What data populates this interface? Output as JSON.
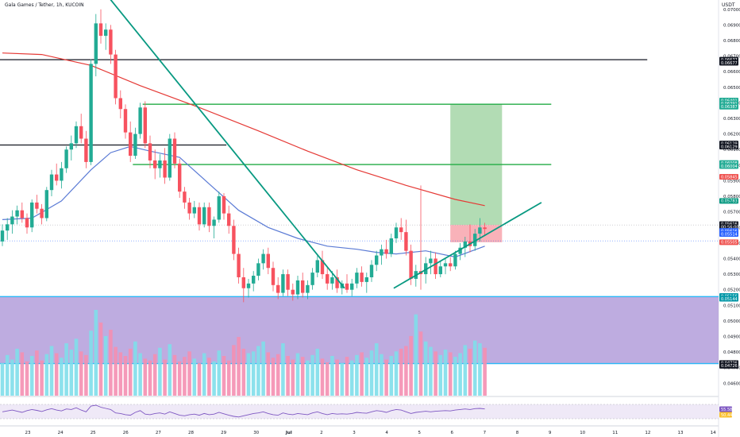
{
  "header": {
    "title": "Gala Games / Tether, 1h, KUCOIN",
    "currency": "USDT"
  },
  "colors": {
    "up": "#26a69a",
    "up_body": "#22ab94",
    "down": "#ef5350",
    "down_body": "#f7525f",
    "ma_long": "#e53935",
    "ma_short": "#5b7bd5",
    "trendline": "#089981",
    "level_green": "#22ab44",
    "level_black": "#131722",
    "zone_purple": "#b39ddb",
    "zone_border": "#29b6f6",
    "target_fill": "#a5d6a7",
    "stop_fill": "#f8a5ad",
    "rsi_line": "#7e57c2",
    "rsi_band": "#ede7f6"
  },
  "chart_data": {
    "type": "candlestick",
    "symbol": "Gala Games / Tether",
    "interval": "1h",
    "exchange": "KUCOIN",
    "quote": "USDT",
    "ylim": [
      0.0452,
      0.0706
    ],
    "y_ticks": [
      "0.07000",
      "0.06900",
      "0.06800",
      "0.06700",
      "0.06600",
      "0.06500",
      "0.06400",
      "0.06300",
      "0.06200",
      "0.06100",
      "0.06000",
      "0.05900",
      "0.05800",
      "0.05700",
      "0.05600",
      "0.05500",
      "0.05400",
      "0.05300",
      "0.05200",
      "0.05100",
      "0.05000",
      "0.04900",
      "0.04800",
      "0.04700",
      "0.04600"
    ],
    "x_ticks": [
      "23",
      "24",
      "25",
      "26",
      "27",
      "28",
      "29",
      "30",
      "Jul",
      "2",
      "3",
      "4",
      "5",
      "6",
      "7",
      "8",
      "9",
      "10",
      "11",
      "12",
      "13",
      "14"
    ],
    "x_range": [
      22.2,
      14.2
    ],
    "candles": [
      {
        "o": 0.0551,
        "h": 0.0562,
        "l": 0.0548,
        "c": 0.0558
      },
      {
        "o": 0.0558,
        "h": 0.0566,
        "l": 0.0552,
        "c": 0.0562
      },
      {
        "o": 0.0562,
        "h": 0.0571,
        "l": 0.0556,
        "c": 0.0567
      },
      {
        "o": 0.0567,
        "h": 0.0574,
        "l": 0.0562,
        "c": 0.0571
      },
      {
        "o": 0.0571,
        "h": 0.0576,
        "l": 0.0563,
        "c": 0.0566
      },
      {
        "o": 0.0566,
        "h": 0.0569,
        "l": 0.0556,
        "c": 0.056
      },
      {
        "o": 0.056,
        "h": 0.0578,
        "l": 0.0557,
        "c": 0.0576
      },
      {
        "o": 0.0576,
        "h": 0.0581,
        "l": 0.0569,
        "c": 0.0572
      },
      {
        "o": 0.0572,
        "h": 0.0575,
        "l": 0.0562,
        "c": 0.0566
      },
      {
        "o": 0.0566,
        "h": 0.0586,
        "l": 0.0564,
        "c": 0.0584
      },
      {
        "o": 0.0584,
        "h": 0.0597,
        "l": 0.058,
        "c": 0.0594
      },
      {
        "o": 0.0594,
        "h": 0.0601,
        "l": 0.0587,
        "c": 0.059
      },
      {
        "o": 0.059,
        "h": 0.0602,
        "l": 0.0585,
        "c": 0.0598
      },
      {
        "o": 0.0598,
        "h": 0.0612,
        "l": 0.0595,
        "c": 0.061
      },
      {
        "o": 0.061,
        "h": 0.0619,
        "l": 0.0603,
        "c": 0.0614
      },
      {
        "o": 0.0614,
        "h": 0.0628,
        "l": 0.0611,
        "c": 0.0625
      },
      {
        "o": 0.0625,
        "h": 0.0633,
        "l": 0.0614,
        "c": 0.0617
      },
      {
        "o": 0.0617,
        "h": 0.0622,
        "l": 0.0598,
        "c": 0.0602
      },
      {
        "o": 0.0602,
        "h": 0.0668,
        "l": 0.06,
        "c": 0.0665
      },
      {
        "o": 0.0665,
        "h": 0.0697,
        "l": 0.0657,
        "c": 0.0691
      },
      {
        "o": 0.0691,
        "h": 0.07,
        "l": 0.0678,
        "c": 0.0683
      },
      {
        "o": 0.0683,
        "h": 0.0691,
        "l": 0.0674,
        "c": 0.0687
      },
      {
        "o": 0.0687,
        "h": 0.069,
        "l": 0.0665,
        "c": 0.0671
      },
      {
        "o": 0.0671,
        "h": 0.0674,
        "l": 0.0639,
        "c": 0.0643
      },
      {
        "o": 0.0643,
        "h": 0.0648,
        "l": 0.063,
        "c": 0.0636
      },
      {
        "o": 0.0636,
        "h": 0.0639,
        "l": 0.0617,
        "c": 0.0621
      },
      {
        "o": 0.0621,
        "h": 0.0628,
        "l": 0.0602,
        "c": 0.0606
      },
      {
        "o": 0.0606,
        "h": 0.0624,
        "l": 0.0604,
        "c": 0.062
      },
      {
        "o": 0.062,
        "h": 0.064,
        "l": 0.0617,
        "c": 0.0637
      },
      {
        "o": 0.0637,
        "h": 0.0641,
        "l": 0.0611,
        "c": 0.0614
      },
      {
        "o": 0.0614,
        "h": 0.0619,
        "l": 0.0598,
        "c": 0.0603
      },
      {
        "o": 0.0603,
        "h": 0.061,
        "l": 0.0591,
        "c": 0.0598
      },
      {
        "o": 0.0598,
        "h": 0.0607,
        "l": 0.0592,
        "c": 0.0603
      },
      {
        "o": 0.0603,
        "h": 0.0611,
        "l": 0.0588,
        "c": 0.0592
      },
      {
        "o": 0.0592,
        "h": 0.062,
        "l": 0.059,
        "c": 0.0617
      },
      {
        "o": 0.0617,
        "h": 0.0621,
        "l": 0.0598,
        "c": 0.0601
      },
      {
        "o": 0.0601,
        "h": 0.0604,
        "l": 0.0579,
        "c": 0.0583
      },
      {
        "o": 0.0583,
        "h": 0.0586,
        "l": 0.0572,
        "c": 0.0576
      },
      {
        "o": 0.0576,
        "h": 0.0579,
        "l": 0.0565,
        "c": 0.0569
      },
      {
        "o": 0.0569,
        "h": 0.0577,
        "l": 0.0566,
        "c": 0.0573
      },
      {
        "o": 0.0573,
        "h": 0.0576,
        "l": 0.0558,
        "c": 0.0562
      },
      {
        "o": 0.0562,
        "h": 0.0576,
        "l": 0.056,
        "c": 0.0573
      },
      {
        "o": 0.0573,
        "h": 0.0576,
        "l": 0.0557,
        "c": 0.0561
      },
      {
        "o": 0.0561,
        "h": 0.0567,
        "l": 0.0553,
        "c": 0.0565
      },
      {
        "o": 0.0565,
        "h": 0.0583,
        "l": 0.0563,
        "c": 0.058
      },
      {
        "o": 0.058,
        "h": 0.0582,
        "l": 0.0565,
        "c": 0.0569
      },
      {
        "o": 0.0569,
        "h": 0.0574,
        "l": 0.0556,
        "c": 0.0561
      },
      {
        "o": 0.0561,
        "h": 0.0565,
        "l": 0.0539,
        "c": 0.0543
      },
      {
        "o": 0.0543,
        "h": 0.0547,
        "l": 0.0524,
        "c": 0.0528
      },
      {
        "o": 0.0528,
        "h": 0.0534,
        "l": 0.0512,
        "c": 0.0521
      },
      {
        "o": 0.0521,
        "h": 0.0527,
        "l": 0.0515,
        "c": 0.0524
      },
      {
        "o": 0.0524,
        "h": 0.0532,
        "l": 0.0519,
        "c": 0.0529
      },
      {
        "o": 0.0529,
        "h": 0.054,
        "l": 0.0526,
        "c": 0.0537
      },
      {
        "o": 0.0537,
        "h": 0.0546,
        "l": 0.0533,
        "c": 0.0543
      },
      {
        "o": 0.0543,
        "h": 0.0547,
        "l": 0.053,
        "c": 0.0534
      },
      {
        "o": 0.0534,
        "h": 0.0538,
        "l": 0.0519,
        "c": 0.0523
      },
      {
        "o": 0.0523,
        "h": 0.0528,
        "l": 0.0514,
        "c": 0.0518
      },
      {
        "o": 0.0518,
        "h": 0.0533,
        "l": 0.0516,
        "c": 0.053
      },
      {
        "o": 0.053,
        "h": 0.0533,
        "l": 0.0516,
        "c": 0.052
      },
      {
        "o": 0.052,
        "h": 0.0524,
        "l": 0.0513,
        "c": 0.0517
      },
      {
        "o": 0.0517,
        "h": 0.0529,
        "l": 0.0514,
        "c": 0.0526
      },
      {
        "o": 0.0526,
        "h": 0.0531,
        "l": 0.0515,
        "c": 0.0518
      },
      {
        "o": 0.0518,
        "h": 0.0526,
        "l": 0.0514,
        "c": 0.0523
      },
      {
        "o": 0.0523,
        "h": 0.0534,
        "l": 0.052,
        "c": 0.0531
      },
      {
        "o": 0.0531,
        "h": 0.0542,
        "l": 0.0528,
        "c": 0.0539
      },
      {
        "o": 0.0539,
        "h": 0.0545,
        "l": 0.0527,
        "c": 0.053
      },
      {
        "o": 0.053,
        "h": 0.0534,
        "l": 0.052,
        "c": 0.0524
      },
      {
        "o": 0.0524,
        "h": 0.0532,
        "l": 0.052,
        "c": 0.0528
      },
      {
        "o": 0.0528,
        "h": 0.0533,
        "l": 0.0518,
        "c": 0.0521
      },
      {
        "o": 0.0521,
        "h": 0.0526,
        "l": 0.0517,
        "c": 0.0524
      },
      {
        "o": 0.0524,
        "h": 0.053,
        "l": 0.0518,
        "c": 0.052
      },
      {
        "o": 0.052,
        "h": 0.0527,
        "l": 0.0516,
        "c": 0.0524
      },
      {
        "o": 0.0524,
        "h": 0.0534,
        "l": 0.0521,
        "c": 0.0531
      },
      {
        "o": 0.0531,
        "h": 0.0535,
        "l": 0.0522,
        "c": 0.0525
      },
      {
        "o": 0.0525,
        "h": 0.0531,
        "l": 0.0518,
        "c": 0.0528
      },
      {
        "o": 0.0528,
        "h": 0.0539,
        "l": 0.0525,
        "c": 0.0536
      },
      {
        "o": 0.0536,
        "h": 0.0545,
        "l": 0.0532,
        "c": 0.0542
      },
      {
        "o": 0.0542,
        "h": 0.0549,
        "l": 0.0536,
        "c": 0.0546
      },
      {
        "o": 0.0546,
        "h": 0.0552,
        "l": 0.054,
        "c": 0.0543
      },
      {
        "o": 0.0543,
        "h": 0.0556,
        "l": 0.0541,
        "c": 0.0553
      },
      {
        "o": 0.0553,
        "h": 0.0563,
        "l": 0.055,
        "c": 0.056
      },
      {
        "o": 0.056,
        "h": 0.0566,
        "l": 0.0552,
        "c": 0.0557
      },
      {
        "o": 0.0557,
        "h": 0.0565,
        "l": 0.0542,
        "c": 0.0545
      },
      {
        "o": 0.0545,
        "h": 0.0549,
        "l": 0.0523,
        "c": 0.0527
      },
      {
        "o": 0.0527,
        "h": 0.0536,
        "l": 0.0522,
        "c": 0.0532
      },
      {
        "o": 0.0532,
        "h": 0.0587,
        "l": 0.052,
        "c": 0.053
      },
      {
        "o": 0.053,
        "h": 0.0541,
        "l": 0.0524,
        "c": 0.0537
      },
      {
        "o": 0.0537,
        "h": 0.0545,
        "l": 0.053,
        "c": 0.054
      },
      {
        "o": 0.054,
        "h": 0.0544,
        "l": 0.0527,
        "c": 0.053
      },
      {
        "o": 0.053,
        "h": 0.0538,
        "l": 0.0528,
        "c": 0.0535
      },
      {
        "o": 0.0535,
        "h": 0.054,
        "l": 0.053,
        "c": 0.0537
      },
      {
        "o": 0.0537,
        "h": 0.0541,
        "l": 0.0532,
        "c": 0.0535
      },
      {
        "o": 0.0535,
        "h": 0.0545,
        "l": 0.0533,
        "c": 0.0543
      },
      {
        "o": 0.0543,
        "h": 0.055,
        "l": 0.0539,
        "c": 0.0547
      },
      {
        "o": 0.0547,
        "h": 0.0554,
        "l": 0.0541,
        "c": 0.0551
      },
      {
        "o": 0.0551,
        "h": 0.0562,
        "l": 0.0544,
        "c": 0.0548
      },
      {
        "o": 0.0548,
        "h": 0.0559,
        "l": 0.0545,
        "c": 0.0556
      },
      {
        "o": 0.0556,
        "h": 0.0566,
        "l": 0.0551,
        "c": 0.056
      },
      {
        "o": 0.056,
        "h": 0.0563,
        "l": 0.0555,
        "c": 0.0559
      }
    ],
    "volume": [
      36,
      45,
      40,
      52,
      48,
      38,
      44,
      50,
      39,
      46,
      55,
      47,
      42,
      58,
      51,
      63,
      49,
      45,
      72,
      95,
      81,
      66,
      73,
      54,
      48,
      44,
      52,
      60,
      47,
      41,
      39,
      46,
      53,
      40,
      57,
      45,
      38,
      43,
      49,
      41,
      36,
      47,
      42,
      38,
      50,
      44,
      39,
      56,
      65,
      52,
      47,
      49,
      55,
      60,
      48,
      42,
      46,
      58,
      44,
      40,
      47,
      43,
      39,
      45,
      52,
      41,
      37,
      44,
      40,
      36,
      43,
      39,
      45,
      48,
      42,
      50,
      58,
      46,
      40,
      44,
      49,
      52,
      55,
      66,
      90,
      71,
      60,
      54,
      49,
      45,
      51,
      48,
      43,
      47,
      56,
      52,
      61,
      58,
      53
    ],
    "ma_long": [
      [
        0,
        0.0672
      ],
      [
        8,
        0.0671
      ],
      [
        18,
        0.0664
      ],
      [
        28,
        0.0651
      ],
      [
        40,
        0.0637
      ],
      [
        52,
        0.0622
      ],
      [
        62,
        0.0609
      ],
      [
        72,
        0.0597
      ],
      [
        82,
        0.0587
      ],
      [
        92,
        0.0578
      ],
      [
        98,
        0.0574
      ]
    ],
    "ma_short": [
      [
        0,
        0.0565
      ],
      [
        6,
        0.0566
      ],
      [
        12,
        0.0577
      ],
      [
        18,
        0.0597
      ],
      [
        22,
        0.0608
      ],
      [
        26,
        0.0612
      ],
      [
        30,
        0.0609
      ],
      [
        36,
        0.0605
      ],
      [
        42,
        0.0588
      ],
      [
        48,
        0.0571
      ],
      [
        54,
        0.056
      ],
      [
        60,
        0.0553
      ],
      [
        66,
        0.0548
      ],
      [
        72,
        0.0546
      ],
      [
        76,
        0.0544
      ],
      [
        80,
        0.0543
      ],
      [
        86,
        0.0545
      ],
      [
        92,
        0.0541
      ],
      [
        98,
        0.0548
      ]
    ],
    "trendlines": [
      {
        "from": [
          20.5,
          0.0712
        ],
        "to": [
          69.5,
          0.0521
        ]
      },
      {
        "from": [
          79.5,
          0.0521
        ],
        "to": [
          109.5,
          0.0576
        ]
      }
    ],
    "levels": [
      {
        "price": 0.06677,
        "kind": "black",
        "x0": -1,
        "x1": 131
      },
      {
        "price": 0.06129,
        "kind": "black",
        "x0": -1,
        "x1": 45.5
      },
      {
        "price": 0.06391,
        "kind": "green",
        "x0": 28.5,
        "x1": 111.5
      },
      {
        "price": 0.06004,
        "kind": "green",
        "x0": 26.5,
        "x1": 111.5
      }
    ],
    "zone": {
      "top": 0.05156,
      "bottom": 0.04726
    },
    "position": {
      "entry": 0.05616,
      "target": 0.06391,
      "stop": 0.05505,
      "x0": 91,
      "x1": 101.5
    },
    "current_price_line": 0.05616,
    "ma_short_line": 0.05514,
    "axis_tags": [
      {
        "text": "0.06677",
        "price": 0.06677,
        "bg": "#131722"
      },
      {
        "text": "0.06677",
        "price": 0.06657,
        "bg": "#131722"
      },
      {
        "text": "0.06401",
        "price": 0.06415,
        "bg": "#22ab94"
      },
      {
        "text": "0.06391",
        "price": 0.06395,
        "bg": "#22ab94"
      },
      {
        "text": "0.06387",
        "price": 0.06375,
        "bg": "#22ab94"
      },
      {
        "text": "0.06129",
        "price": 0.06139,
        "bg": "#131722"
      },
      {
        "text": "0.06129",
        "price": 0.06119,
        "bg": "#131722"
      },
      {
        "text": "0.06008",
        "price": 0.06014,
        "bg": "#22ab94"
      },
      {
        "text": "0.06004",
        "price": 0.05994,
        "bg": "#22ab94"
      },
      {
        "text": "0.05845",
        "price": 0.05925,
        "bg": "#ef5350"
      },
      {
        "text": "0.05783",
        "price": 0.0577,
        "bg": "#089981"
      },
      {
        "text": "0.05616",
        "price": 0.05622,
        "bg": "#131722"
      },
      {
        "text": "00:56:00",
        "price": 0.05602,
        "bg": "#131722"
      },
      {
        "text": "0.05616",
        "price": 0.05578,
        "bg": "#2962ff"
      },
      {
        "text": "0.05514",
        "price": 0.05558,
        "bg": "#2962ff"
      },
      {
        "text": "0.05505",
        "price": 0.05505,
        "bg": "#ef5350"
      },
      {
        "text": "0.05156",
        "price": 0.0516,
        "bg": "#0097a7"
      },
      {
        "text": "0.05144",
        "price": 0.05142,
        "bg": "#0097a7"
      },
      {
        "text": "0.04726",
        "price": 0.0473,
        "bg": "#131722"
      },
      {
        "text": "0.04726",
        "price": 0.04712,
        "bg": "#131722"
      }
    ],
    "rsi": {
      "values": [
        52,
        55,
        58,
        54,
        50,
        56,
        60,
        57,
        53,
        59,
        63,
        58,
        55,
        62,
        60,
        66,
        58,
        52,
        72,
        75,
        68,
        64,
        60,
        48,
        46,
        42,
        40,
        50,
        56,
        44,
        42,
        46,
        48,
        44,
        52,
        46,
        40,
        38,
        42,
        44,
        40,
        46,
        42,
        44,
        50,
        45,
        40,
        36,
        34,
        38,
        42,
        46,
        48,
        52,
        46,
        42,
        40,
        48,
        44,
        42,
        46,
        44,
        42,
        48,
        52,
        46,
        42,
        46,
        44,
        45,
        44,
        46,
        50,
        48,
        47,
        52,
        56,
        54,
        50,
        56,
        60,
        58,
        52,
        46,
        50,
        52,
        54,
        52,
        54,
        55,
        56,
        55,
        58,
        60,
        62,
        60,
        63,
        64,
        62
      ],
      "labels": [
        {
          "text": "55.58",
          "bg": "#7e57c2"
        },
        {
          "text": "50.44",
          "bg": "#fbc02d"
        }
      ]
    }
  }
}
